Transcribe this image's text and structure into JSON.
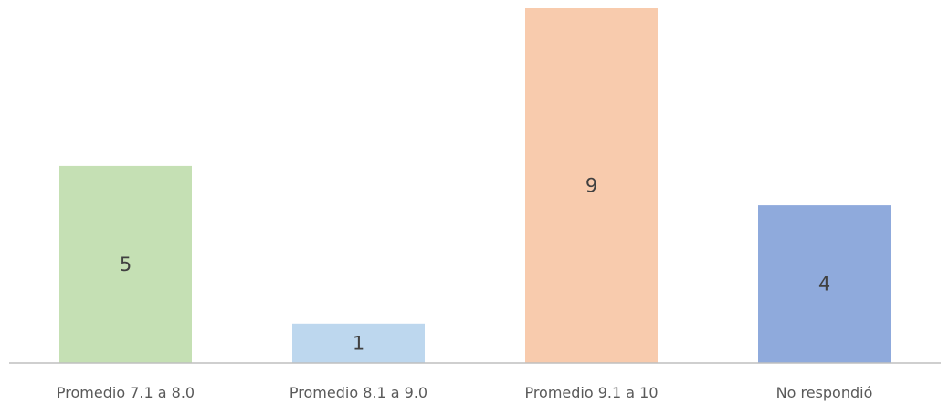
{
  "chart_data": {
    "type": "bar",
    "title": "",
    "xlabel": "",
    "ylabel": "",
    "categories": [
      "Promedio 7.1 a 8.0",
      "Promedio 8.1 a 9.0",
      "Promedio 9.1 a 10",
      "No respondió"
    ],
    "values": [
      5,
      1,
      9,
      4
    ],
    "colors": [
      "#c5e0b4",
      "#bdd7ee",
      "#f8cbad",
      "#8faadc"
    ],
    "data_labels_shown": true,
    "axis_line_color": "#bfbfbf",
    "label_color": "#595959",
    "value_label_color": "#404040",
    "ylim": [
      0,
      9
    ],
    "grid": false,
    "legend": "none"
  }
}
